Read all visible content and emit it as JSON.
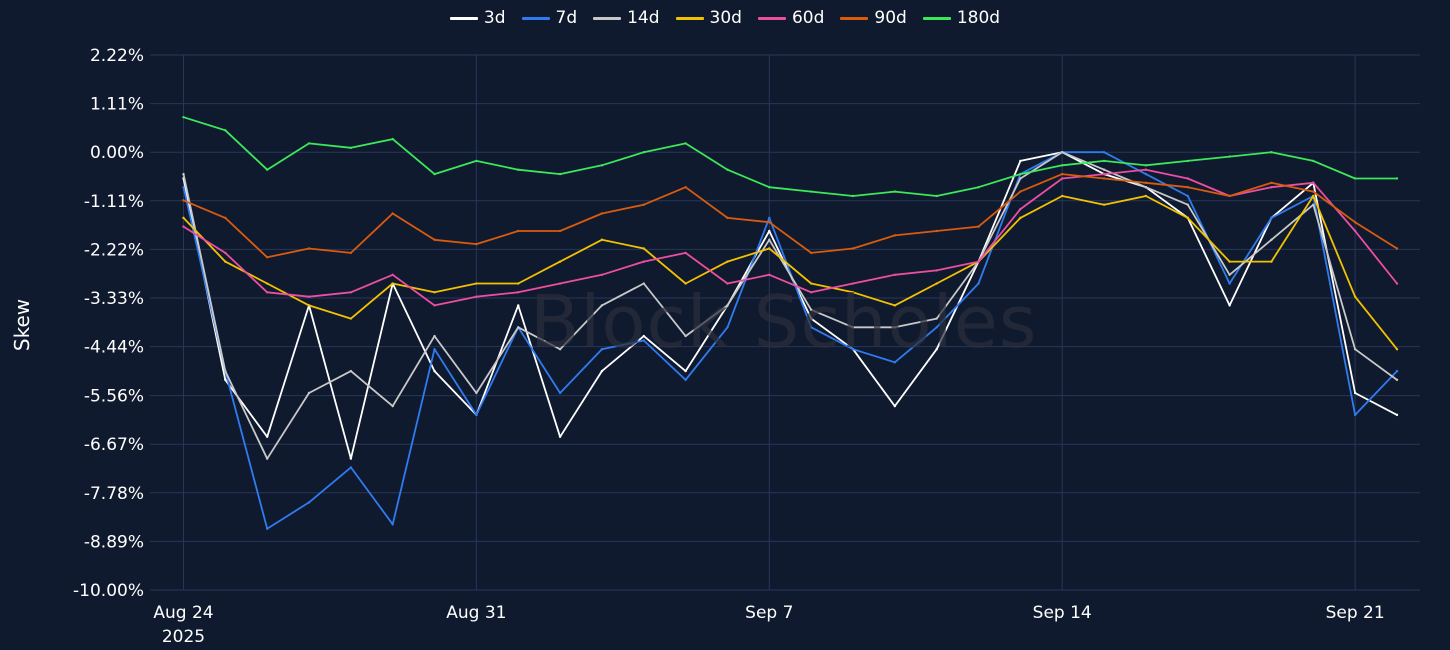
{
  "chart_data": {
    "type": "line",
    "ylabel": "Skew",
    "watermark": "Block Scholes",
    "ylim": [
      -10.0,
      2.22
    ],
    "yticks": [
      "2.22%",
      "1.11%",
      "0.00%",
      "-1.11%",
      "-2.22%",
      "-3.33%",
      "-4.44%",
      "-5.56%",
      "-6.67%",
      "-7.78%",
      "-8.89%",
      "-10.00%"
    ],
    "ytick_values": [
      2.22,
      1.11,
      0.0,
      -1.11,
      -2.22,
      -3.33,
      -4.44,
      -5.56,
      -6.67,
      -7.78,
      -8.89,
      -10.0
    ],
    "x_dates": [
      "Aug 24",
      "Aug 25",
      "Aug 26",
      "Aug 27",
      "Aug 28",
      "Aug 29",
      "Aug 30",
      "Aug 31",
      "Sep 1",
      "Sep 2",
      "Sep 3",
      "Sep 4",
      "Sep 5",
      "Sep 6",
      "Sep 7",
      "Sep 8",
      "Sep 9",
      "Sep 10",
      "Sep 11",
      "Sep 12",
      "Sep 13",
      "Sep 14",
      "Sep 15",
      "Sep 16",
      "Sep 17",
      "Sep 18",
      "Sep 19",
      "Sep 20",
      "Sep 21",
      "Sep 22"
    ],
    "xticks": [
      {
        "label": "Aug 24",
        "sublabel": "2025",
        "x": 0
      },
      {
        "label": "Aug 31",
        "sublabel": "",
        "x": 7
      },
      {
        "label": "Sep 7",
        "sublabel": "",
        "x": 14
      },
      {
        "label": "Sep 14",
        "sublabel": "",
        "x": 21
      },
      {
        "label": "Sep 21",
        "sublabel": "",
        "x": 28
      }
    ],
    "grid": true,
    "legend_position": "top-center",
    "series": [
      {
        "name": "3d",
        "color": "#ffffff",
        "values": [
          -0.6,
          -5.2,
          -6.5,
          -3.5,
          -7.0,
          -3.0,
          -5.0,
          -6.0,
          -3.5,
          -6.5,
          -5.0,
          -4.2,
          -5.0,
          -3.5,
          -1.8,
          -3.8,
          -4.5,
          -5.8,
          -4.5,
          -2.5,
          -0.2,
          0.0,
          -0.5,
          -0.8,
          -1.5,
          -3.5,
          -1.5,
          -0.7,
          -5.5,
          -6.0
        ]
      },
      {
        "name": "7d",
        "color": "#2f7bf0",
        "values": [
          -0.8,
          -5.0,
          -8.6,
          -8.0,
          -7.2,
          -8.5,
          -4.5,
          -6.0,
          -4.0,
          -5.5,
          -4.5,
          -4.3,
          -5.2,
          -4.0,
          -1.5,
          -4.0,
          -4.5,
          -4.8,
          -4.0,
          -3.0,
          -0.5,
          0.0,
          0.0,
          -0.5,
          -1.0,
          -3.0,
          -1.5,
          -1.0,
          -6.0,
          -5.0
        ]
      },
      {
        "name": "14d",
        "color": "#c8c8c8",
        "values": [
          -0.5,
          -5.0,
          -7.0,
          -5.5,
          -5.0,
          -5.8,
          -4.2,
          -5.5,
          -4.0,
          -4.5,
          -3.5,
          -3.0,
          -4.2,
          -3.5,
          -2.0,
          -3.6,
          -4.0,
          -4.0,
          -3.8,
          -2.5,
          -0.6,
          0.0,
          -0.4,
          -0.8,
          -1.2,
          -2.8,
          -2.0,
          -1.2,
          -4.5,
          -5.2
        ]
      },
      {
        "name": "30d",
        "color": "#f2c200",
        "values": [
          -1.5,
          -2.5,
          -3.0,
          -3.5,
          -3.8,
          -3.0,
          -3.2,
          -3.0,
          -3.0,
          -2.5,
          -2.0,
          -2.2,
          -3.0,
          -2.5,
          -2.2,
          -3.0,
          -3.2,
          -3.5,
          -3.0,
          -2.5,
          -1.5,
          -1.0,
          -1.2,
          -1.0,
          -1.5,
          -2.5,
          -2.5,
          -1.0,
          -3.3,
          -4.5
        ]
      },
      {
        "name": "60d",
        "color": "#ec4ea0",
        "values": [
          -1.7,
          -2.3,
          -3.2,
          -3.3,
          -3.2,
          -2.8,
          -3.5,
          -3.3,
          -3.2,
          -3.0,
          -2.8,
          -2.5,
          -2.3,
          -3.0,
          -2.8,
          -3.2,
          -3.0,
          -2.8,
          -2.7,
          -2.5,
          -1.3,
          -0.6,
          -0.5,
          -0.4,
          -0.6,
          -1.0,
          -0.8,
          -0.7,
          -1.8,
          -3.0
        ]
      },
      {
        "name": "90d",
        "color": "#d95b0e",
        "values": [
          -1.1,
          -1.5,
          -2.4,
          -2.2,
          -2.3,
          -1.4,
          -2.0,
          -2.1,
          -1.8,
          -1.8,
          -1.4,
          -1.2,
          -0.8,
          -1.5,
          -1.6,
          -2.3,
          -2.2,
          -1.9,
          -1.8,
          -1.7,
          -0.9,
          -0.5,
          -0.6,
          -0.7,
          -0.8,
          -1.0,
          -0.7,
          -0.9,
          -1.6,
          -2.2
        ]
      },
      {
        "name": "180d",
        "color": "#3ce85a",
        "values": [
          0.8,
          0.5,
          -0.4,
          0.2,
          0.1,
          0.3,
          -0.5,
          -0.2,
          -0.4,
          -0.5,
          -0.3,
          0.0,
          0.2,
          -0.4,
          -0.8,
          -0.9,
          -1.0,
          -0.9,
          -1.0,
          -0.8,
          -0.5,
          -0.3,
          -0.2,
          -0.3,
          -0.2,
          -0.1,
          0.0,
          -0.2,
          -0.6,
          -0.6
        ]
      }
    ]
  }
}
